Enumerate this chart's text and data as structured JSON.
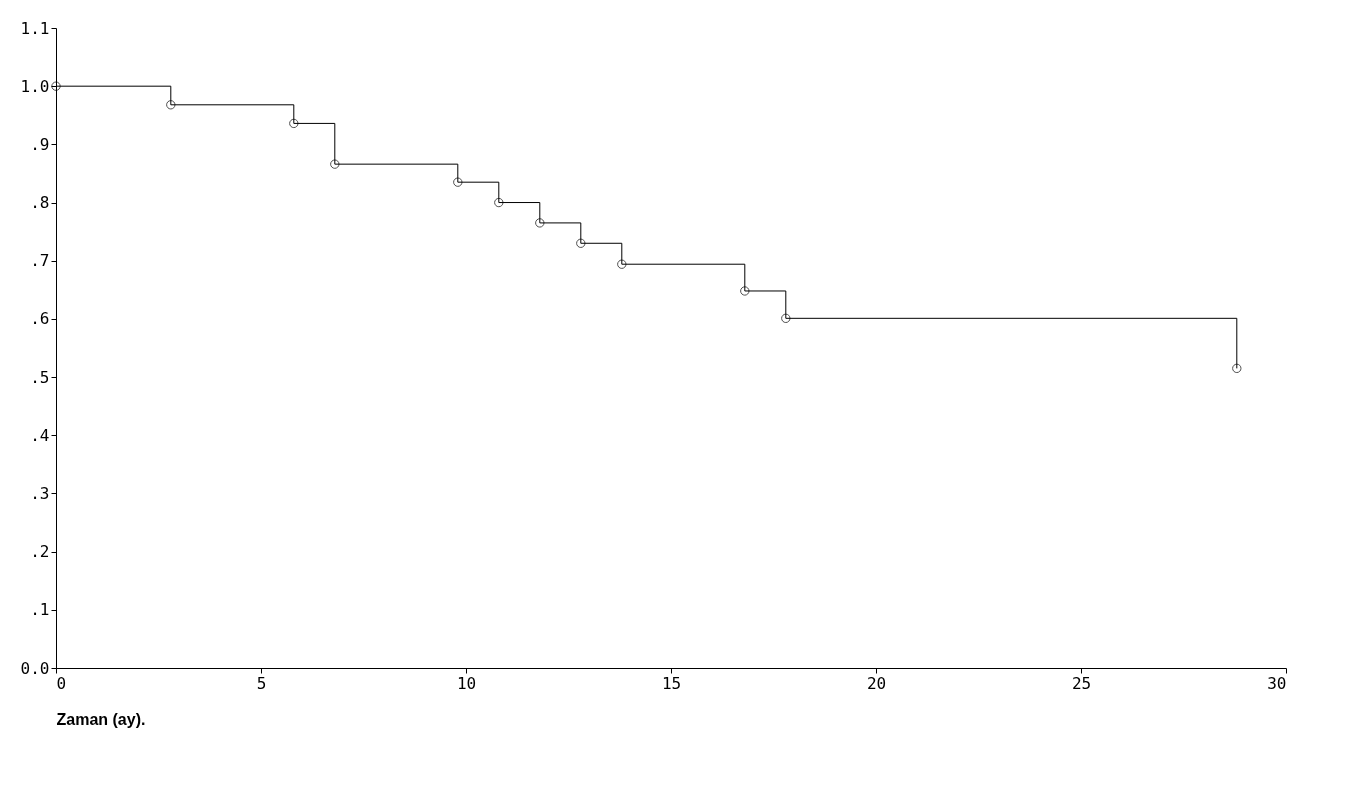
{
  "chart_data": {
    "type": "step",
    "xlabel": "Zaman (ay).",
    "x": [
      0,
      2.8,
      5.8,
      6.8,
      9.8,
      10.8,
      11.8,
      12.8,
      13.8,
      16.8,
      17.8,
      28.8
    ],
    "series": [
      {
        "color": "#000000",
        "values": [
          1.0,
          0.968,
          0.936,
          0.866,
          0.835,
          0.8,
          0.765,
          0.73,
          0.694,
          0.648,
          0.601,
          0.515
        ]
      }
    ],
    "xlim": [
      0,
      30
    ],
    "xticks": [
      0,
      5,
      10,
      15,
      20,
      25,
      30
    ],
    "ylim": [
      0,
      1.1
    ],
    "yticks": [
      {
        "value": 0,
        "label": "0.0"
      },
      {
        "value": 0.1,
        "label": ".1"
      },
      {
        "value": 0.2,
        "label": ".2"
      },
      {
        "value": 0.3,
        "label": ".3"
      },
      {
        "value": 0.4,
        "label": ".4"
      },
      {
        "value": 0.5,
        "label": ".5"
      },
      {
        "value": 0.6,
        "label": ".6"
      },
      {
        "value": 0.7,
        "label": ".7"
      },
      {
        "value": 0.8,
        "label": ".8"
      },
      {
        "value": 0.9,
        "label": ".9"
      },
      {
        "value": 1.0,
        "label": "1.0"
      },
      {
        "value": 1.1,
        "label": "1.1"
      }
    ],
    "grid": false,
    "marker": "circle",
    "line_style": "solid"
  }
}
